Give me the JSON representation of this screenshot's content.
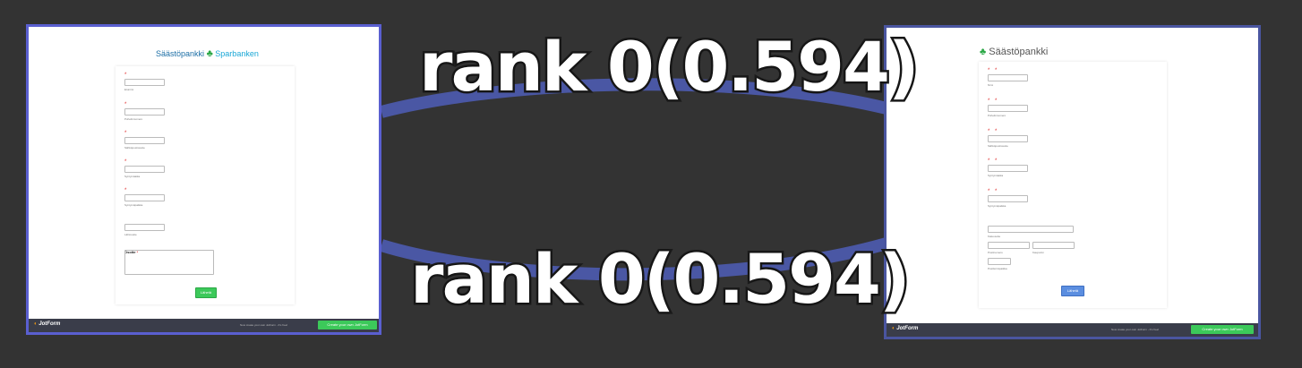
{
  "edges": [
    {
      "label": "rank 0(0.594)"
    },
    {
      "label": "rank 0(0.594)"
    }
  ],
  "colors": {
    "edge": "#4a57a4",
    "background": "#333333"
  },
  "left_form": {
    "brand_part1": "Säästöpankki",
    "brand_icon": "tree-leaf-icon",
    "brand_part2": "Sparbanken",
    "fields": [
      {
        "req": "*",
        "sub": "Etunimi"
      },
      {
        "req": "*",
        "sub": "Puhelinnumero"
      },
      {
        "req": "*",
        "sub": "Sähköpostiosoite"
      },
      {
        "req": "*",
        "sub": "Syntymäaika"
      },
      {
        "req": "*",
        "sub": "Syntymäpaikka"
      },
      {
        "req": "",
        "sub": "Lähiosoite"
      }
    ],
    "address_label": "Osoite",
    "address_star": "*",
    "submit": "Lähetä",
    "footer_logo": "JotForm",
    "footer_tagline": "Now create your own JotForm - It's free!",
    "footer_button": "Create your own JotForm"
  },
  "right_form": {
    "brand": "Säästöpankki",
    "brand_icon": "tree-leaf-icon",
    "fields": [
      {
        "req": "* *",
        "sub": "Nimi"
      },
      {
        "req": "* *",
        "sub": "Puhelinnumero"
      },
      {
        "req": "* *",
        "sub": "Sähköpostiosoite"
      },
      {
        "req": "* *",
        "sub": "Syntymäaika"
      },
      {
        "req": "* *",
        "sub": "Syntymäpaikka"
      }
    ],
    "address_label": "Osoite",
    "address_star": "*",
    "address_sub_1": "Katuosoite",
    "address_sub_2": "Postinumero",
    "address_sub_3": "Kaupunki",
    "address_sub_4": "Postitoimipaikka",
    "submit": "Lähetä",
    "footer_logo": "JotForm",
    "footer_tagline": "Now create your own JotForm - It's free!",
    "footer_button": "Create your own JotForm"
  }
}
